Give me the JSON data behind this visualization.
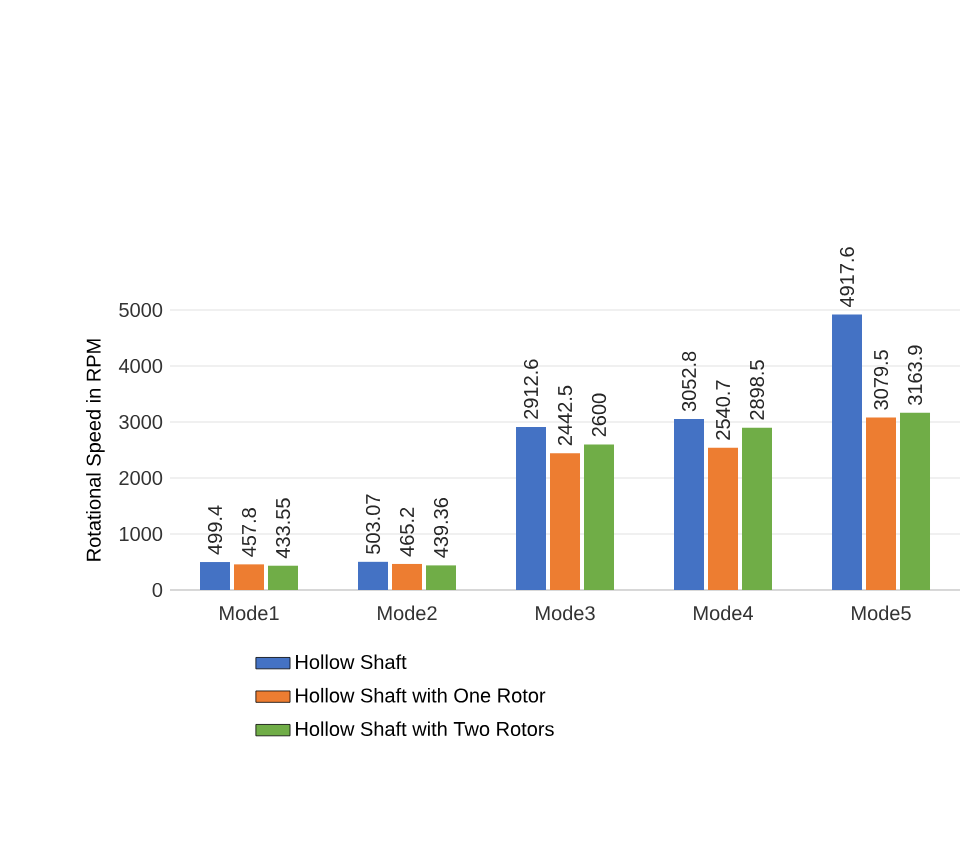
{
  "chart_data": {
    "type": "bar",
    "ylabel": "Rotational Speed in RPM",
    "categories": [
      "Mode1",
      "Mode2",
      "Mode3",
      "Mode4",
      "Mode5"
    ],
    "series": [
      {
        "name": "Hollow Shaft",
        "color": "#4472c4",
        "values": [
          499.4,
          503.07,
          2912.6,
          3052.8,
          4917.6
        ]
      },
      {
        "name": "Hollow Shaft with One Rotor",
        "color": "#ed7d31",
        "values": [
          457.8,
          465.2,
          2442.5,
          2540.7,
          3079.5
        ]
      },
      {
        "name": "Hollow Shaft with Two Rotors",
        "color": "#70ad47",
        "values": [
          433.55,
          439.36,
          2600,
          2898.5,
          3163.9
        ]
      }
    ],
    "ylim": [
      0,
      5000
    ],
    "yticks": [
      0,
      1000,
      2000,
      3000,
      4000,
      5000
    ],
    "grid": "y",
    "legend": "bottom",
    "data_labels": true
  }
}
